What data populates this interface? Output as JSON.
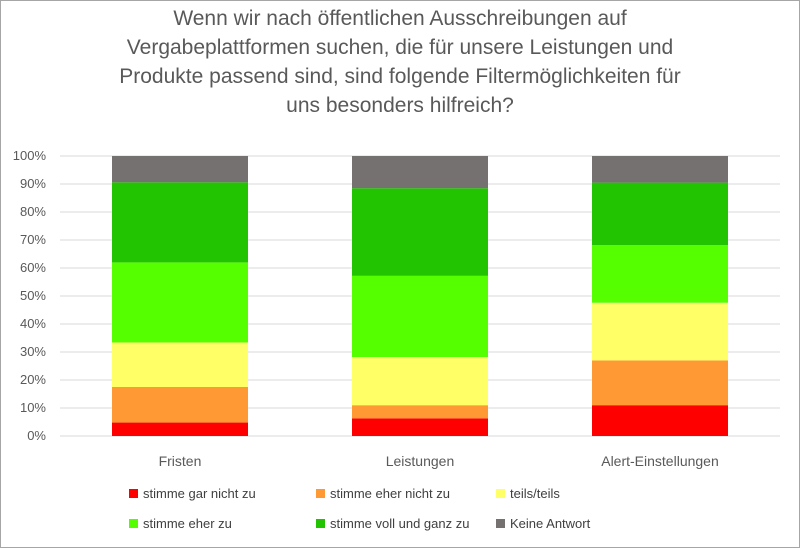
{
  "chart_data": {
    "type": "bar",
    "stacked": true,
    "title_lines": [
      "Wenn wir nach öffentlichen Ausschreibungen auf",
      "Vergabeplattformen suchen, die für unsere Leistungen und",
      "Produkte passend sind, sind folgende Filtermöglichkeiten für",
      "uns besonders hilfreich?"
    ],
    "categories": [
      "Fristen",
      "Leistungen",
      "Alert-Einstellungen"
    ],
    "ylim": [
      0,
      100
    ],
    "yticks": [
      "0%",
      "10%",
      "20%",
      "30%",
      "40%",
      "50%",
      "60%",
      "70%",
      "80%",
      "90%",
      "100%"
    ],
    "grid": true,
    "legend_position": "bottom",
    "series": [
      {
        "name": "stimme gar nicht zu",
        "color": "#ff0000",
        "values": [
          4.8,
          6.3,
          11.0
        ]
      },
      {
        "name": "stimme eher nicht zu",
        "color": "#ff9933",
        "values": [
          12.7,
          4.7,
          16.0
        ]
      },
      {
        "name": "teils/teils",
        "color": "#ffff66",
        "values": [
          15.9,
          17.2,
          20.6
        ]
      },
      {
        "name": "stimme eher zu",
        "color": "#55ff00",
        "values": [
          28.6,
          29.0,
          20.6
        ]
      },
      {
        "name": "stimme voll und ganz zu",
        "color": "#22c300",
        "values": [
          28.6,
          31.3,
          22.3
        ]
      },
      {
        "name": "Keine Antwort",
        "color": "#767171",
        "values": [
          9.4,
          11.5,
          9.5
        ]
      }
    ]
  }
}
